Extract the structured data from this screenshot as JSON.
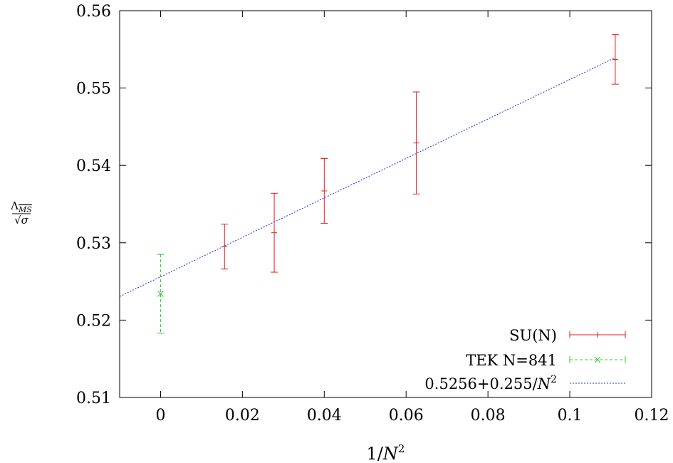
{
  "chart_data": {
    "type": "scatter",
    "xlim": [
      -0.01,
      0.12
    ],
    "ylim": [
      0.51,
      0.56
    ],
    "x_ticks": [
      0,
      0.02,
      0.04,
      0.06,
      0.08,
      0.1,
      0.12
    ],
    "x_tick_labels": [
      "0",
      "0.02",
      "0.04",
      "0.06",
      "0.08",
      "0.1",
      "0.12"
    ],
    "y_ticks": [
      0.51,
      0.52,
      0.53,
      0.54,
      0.55,
      0.56
    ],
    "y_tick_labels": [
      "0.51",
      "0.52",
      "0.53",
      "0.54",
      "0.55",
      "0.56"
    ],
    "xlabel": {
      "prefix": "1/",
      "var": "N",
      "sup": "2"
    },
    "ylabel": {
      "lambda": "Λ",
      "sub": "MS",
      "sqrt": "√",
      "sigma": "σ"
    },
    "grid": false,
    "legend_position": "bottom-right",
    "series": [
      {
        "name": "SU(N)",
        "style": "errorbars",
        "color": "#e41a1c",
        "points": [
          {
            "x": 0.015625,
            "y": 0.5295,
            "err": 0.0029
          },
          {
            "x": 0.027778,
            "y": 0.5313,
            "err": 0.0051
          },
          {
            "x": 0.04,
            "y": 0.5367,
            "err": 0.0042
          },
          {
            "x": 0.0625,
            "y": 0.5429,
            "err": 0.0066
          },
          {
            "x": 0.111111,
            "y": 0.5537,
            "err": 0.0032
          }
        ]
      },
      {
        "name": "TEK N=841",
        "style": "errorbars-dashed",
        "color": "#33cc33",
        "points": [
          {
            "x": 0.0,
            "y": 0.5234,
            "err": 0.0051
          }
        ]
      },
      {
        "name": {
          "text": "0.5256+0.255/",
          "var": "N",
          "sup": "2"
        },
        "style": "line-dotted",
        "color": "#1f2bd6",
        "intercept": 0.5256,
        "slope": 0.255,
        "x_range": [
          -0.01,
          0.111111
        ]
      }
    ]
  }
}
